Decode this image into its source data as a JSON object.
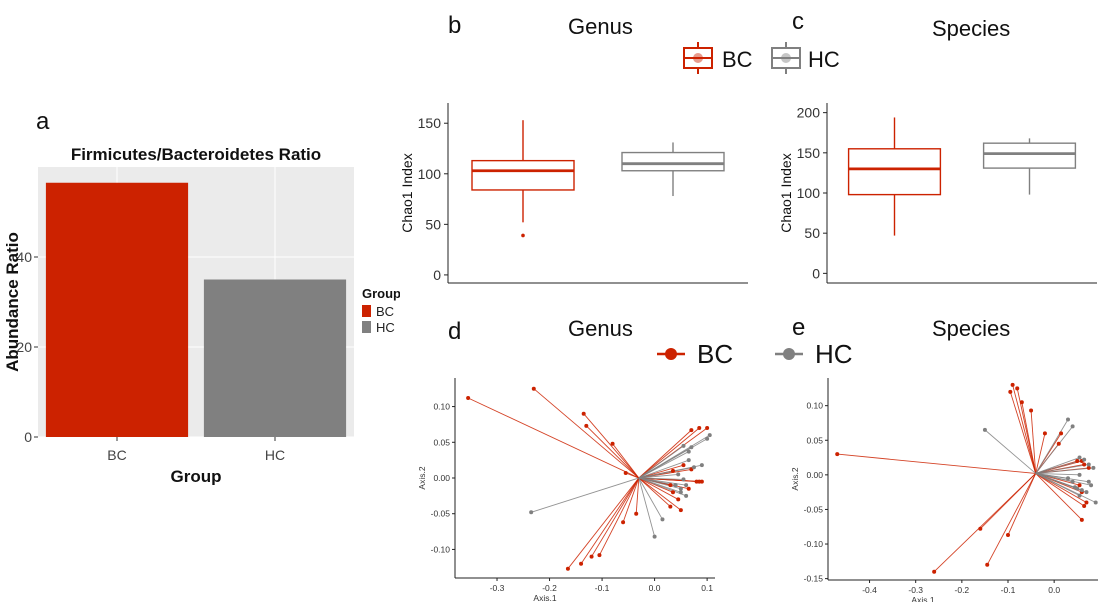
{
  "panels": {
    "a": "a",
    "b": "b",
    "c": "c",
    "d": "d",
    "e": "e"
  },
  "titles": {
    "b": "Genus",
    "c": "Species",
    "d": "Genus",
    "e": "Species"
  },
  "legend": {
    "bc": "BC",
    "hc": "HC",
    "group_title": "Group"
  },
  "colors": {
    "BC": "#cc2200",
    "HC": "#808080"
  },
  "chart_data": [
    {
      "id": "a",
      "type": "bar",
      "title": "Firmicutes/Bacteroidetes Ratio",
      "xlabel": "Group",
      "ylabel": "Abundance Ratio",
      "categories": [
        "BC",
        "HC"
      ],
      "values": [
        56.5,
        35
      ],
      "ylim": [
        0,
        60
      ],
      "yticks": [
        0,
        20,
        40
      ],
      "legend_title": "Group",
      "legend_position": "right",
      "grid": true
    },
    {
      "id": "b",
      "type": "box",
      "title": "Genus",
      "ylabel": "Chao1 Index",
      "ylim": [
        -8,
        170
      ],
      "yticks": [
        0,
        50,
        100,
        150
      ],
      "series": [
        {
          "name": "BC",
          "min": 52,
          "q1": 84,
          "median": 103,
          "q3": 113,
          "max": 153,
          "outliers": [
            39
          ]
        },
        {
          "name": "HC",
          "min": 78,
          "q1": 103,
          "median": 110,
          "q3": 121,
          "max": 131,
          "outliers": []
        }
      ]
    },
    {
      "id": "c",
      "type": "box",
      "title": "Species",
      "ylabel": "Chao1 Index",
      "ylim": [
        -12,
        212
      ],
      "yticks": [
        0,
        50,
        100,
        150,
        200
      ],
      "series": [
        {
          "name": "BC",
          "min": 47,
          "q1": 98,
          "median": 130,
          "q3": 155,
          "max": 194,
          "outliers": []
        },
        {
          "name": "HC",
          "min": 98,
          "q1": 131,
          "median": 149,
          "q3": 162,
          "max": 168,
          "outliers": []
        }
      ]
    },
    {
      "id": "d",
      "type": "scatter",
      "title": "Genus",
      "xlabel": "Axis.1",
      "ylabel": "Axis.2",
      "xlim": [
        -0.38,
        0.115
      ],
      "ylim": [
        -0.14,
        0.14
      ],
      "xticks": [
        -0.3,
        -0.2,
        -0.1,
        0.0,
        0.1
      ],
      "xticklabels": [
        "-0.3",
        "-0.2",
        "-0.1",
        "0.0",
        "0.1"
      ],
      "yticks": [
        -0.1,
        -0.05,
        0.0,
        0.05,
        0.1
      ],
      "yticklabels": [
        "-0.10",
        "-0.05",
        "0.00",
        "0.05",
        "0.10"
      ],
      "centroid": [
        -0.03,
        0.0
      ],
      "series": [
        {
          "name": "BC",
          "points": [
            [
              -0.355,
              0.112
            ],
            [
              -0.23,
              0.125
            ],
            [
              -0.135,
              0.09
            ],
            [
              -0.13,
              0.073
            ],
            [
              -0.08,
              0.048
            ],
            [
              -0.055,
              0.007
            ],
            [
              -0.06,
              -0.062
            ],
            [
              -0.035,
              -0.05
            ],
            [
              -0.165,
              -0.127
            ],
            [
              -0.14,
              -0.12
            ],
            [
              -0.12,
              -0.11
            ],
            [
              -0.105,
              -0.108
            ],
            [
              0.07,
              0.067
            ],
            [
              0.085,
              0.07
            ],
            [
              0.1,
              0.07
            ],
            [
              0.055,
              0.018
            ],
            [
              0.07,
              0.012
            ],
            [
              0.035,
              0.01
            ],
            [
              0.03,
              -0.01
            ],
            [
              0.035,
              -0.02
            ],
            [
              0.045,
              -0.03
            ],
            [
              0.05,
              -0.045
            ],
            [
              0.08,
              -0.005
            ],
            [
              0.085,
              -0.005
            ],
            [
              0.09,
              -0.005
            ],
            [
              0.065,
              -0.015
            ],
            [
              0.03,
              -0.04
            ]
          ]
        },
        {
          "name": "HC",
          "points": [
            [
              -0.235,
              -0.048
            ],
            [
              0.0,
              -0.082
            ],
            [
              0.015,
              -0.058
            ],
            [
              0.065,
              0.037
            ],
            [
              0.07,
              0.043
            ],
            [
              0.055,
              0.045
            ],
            [
              0.065,
              0.025
            ],
            [
              0.09,
              0.018
            ],
            [
              0.1,
              0.055
            ],
            [
              0.105,
              0.06
            ],
            [
              0.045,
              0.005
            ],
            [
              0.055,
              -0.002
            ],
            [
              0.06,
              -0.01
            ],
            [
              0.05,
              -0.015
            ],
            [
              0.06,
              -0.025
            ],
            [
              0.05,
              -0.02
            ],
            [
              0.04,
              -0.01
            ],
            [
              0.075,
              0.015
            ]
          ]
        }
      ]
    },
    {
      "id": "e",
      "type": "scatter",
      "title": "Species",
      "xlabel": "Axis.1",
      "ylabel": "Axis.2",
      "xlim": [
        -0.49,
        0.095
      ],
      "ylim": [
        -0.152,
        0.14
      ],
      "xticks": [
        -0.4,
        -0.3,
        -0.2,
        -0.1,
        0.0
      ],
      "xticklabels": [
        "-0.4",
        "-0.3",
        "-0.2",
        "-0.1",
        "0.0"
      ],
      "yticks": [
        -0.15,
        -0.1,
        -0.05,
        0.0,
        0.05,
        0.1
      ],
      "yticklabels": [
        "-0.15",
        "-0.10",
        "-0.05",
        "0.00",
        "0.05",
        "0.10"
      ],
      "centroid": [
        -0.04,
        0.002
      ],
      "series": [
        {
          "name": "BC",
          "points": [
            [
              -0.47,
              0.03
            ],
            [
              -0.26,
              -0.14
            ],
            [
              -0.16,
              -0.078
            ],
            [
              -0.145,
              -0.13
            ],
            [
              -0.1,
              -0.087
            ],
            [
              -0.09,
              0.13
            ],
            [
              -0.08,
              0.125
            ],
            [
              -0.095,
              0.12
            ],
            [
              -0.07,
              0.105
            ],
            [
              -0.05,
              0.093
            ],
            [
              -0.02,
              0.06
            ],
            [
              0.01,
              0.045
            ],
            [
              0.015,
              0.06
            ],
            [
              0.05,
              0.02
            ],
            [
              0.06,
              0.02
            ],
            [
              0.065,
              0.015
            ],
            [
              0.055,
              -0.015
            ],
            [
              0.06,
              -0.025
            ],
            [
              0.065,
              -0.045
            ],
            [
              0.06,
              -0.065
            ],
            [
              0.07,
              -0.04
            ],
            [
              0.075,
              0.01
            ]
          ]
        },
        {
          "name": "HC",
          "points": [
            [
              -0.15,
              0.065
            ],
            [
              0.03,
              0.08
            ],
            [
              0.04,
              0.07
            ],
            [
              0.055,
              0.025
            ],
            [
              0.065,
              0.022
            ],
            [
              0.075,
              0.015
            ],
            [
              0.085,
              0.01
            ],
            [
              0.03,
              -0.005
            ],
            [
              0.04,
              -0.01
            ],
            [
              0.045,
              -0.018
            ],
            [
              0.05,
              -0.02
            ],
            [
              0.055,
              -0.03
            ],
            [
              0.06,
              -0.022
            ],
            [
              0.07,
              -0.025
            ],
            [
              0.08,
              -0.015
            ],
            [
              0.075,
              -0.01
            ],
            [
              0.09,
              -0.04
            ],
            [
              0.055,
              0.0
            ]
          ]
        }
      ]
    }
  ]
}
